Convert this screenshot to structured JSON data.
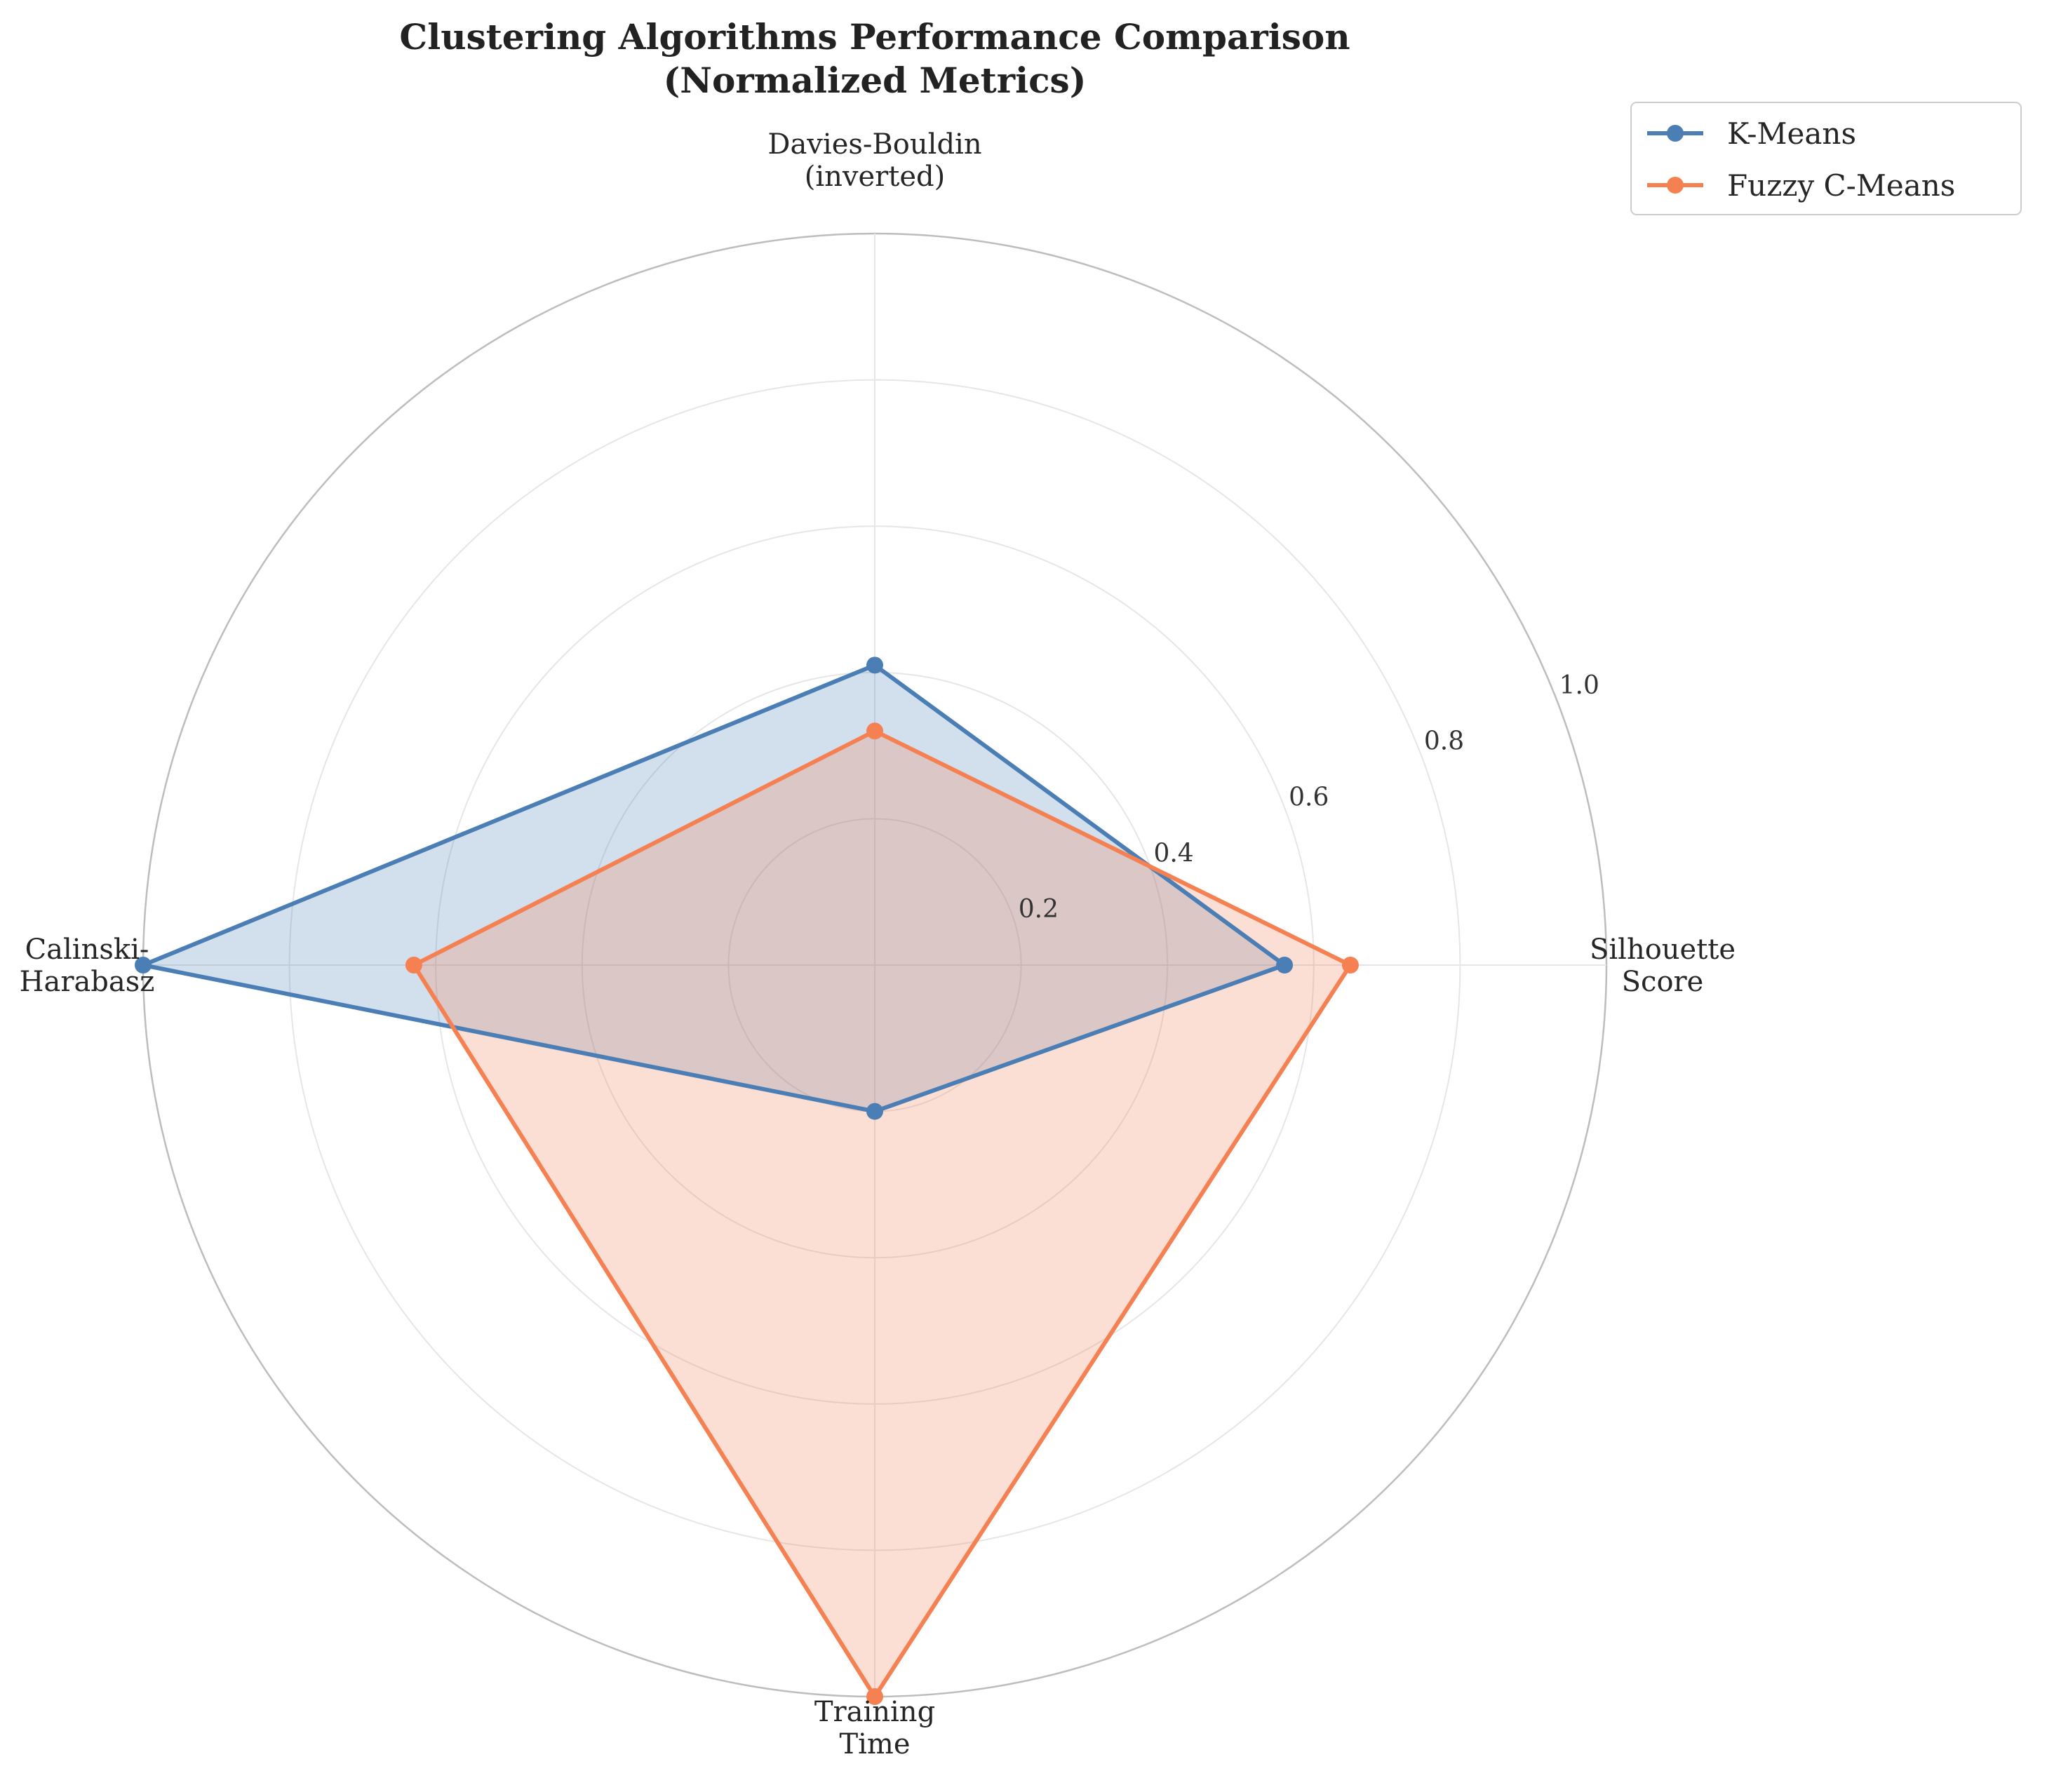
{
  "chart_data": {
    "type": "radar",
    "title_lines": [
      "Clustering Algorithms Performance Comparison",
      "(Normalized Metrics)"
    ],
    "axes": [
      {
        "lines": [
          "Silhouette",
          "Score"
        ]
      },
      {
        "lines": [
          "Davies-Bouldin",
          "(inverted)"
        ]
      },
      {
        "lines": [
          "Calinski-",
          "Harabasz"
        ]
      },
      {
        "lines": [
          "Training",
          "Time"
        ]
      }
    ],
    "rlim": [
      0,
      1.0
    ],
    "r_ticks": [
      "0.2",
      "0.4",
      "0.6",
      "0.8",
      "1.0"
    ],
    "r_tick_values": [
      0.2,
      0.4,
      0.6,
      0.8,
      1.0
    ],
    "grid": true,
    "legend_position": "top-right",
    "series": [
      {
        "name": "K-Means",
        "color": "#4A7EB5",
        "values": [
          0.56,
          0.41,
          1.0,
          0.2
        ]
      },
      {
        "name": "Fuzzy C-Means",
        "color": "#F58152",
        "values": [
          0.65,
          0.32,
          0.63,
          1.0
        ]
      }
    ]
  }
}
